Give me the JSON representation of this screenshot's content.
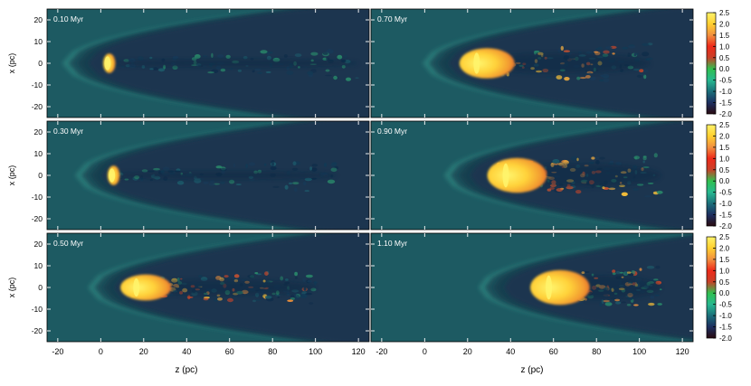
{
  "figure": {
    "xlabel": "z (pc)",
    "ylabel": "x (pc)",
    "x_ticks": [
      -20,
      0,
      20,
      40,
      60,
      80,
      100,
      120
    ],
    "y_ticks": [
      20,
      10,
      0,
      -10,
      -20
    ],
    "colorbar_ticks": [
      "2.5",
      "2.0",
      "1.5",
      "1.0",
      "0.5",
      "0.0",
      "-0.5",
      "-1.0",
      "-1.5",
      "-2.0"
    ],
    "colorbar_colors": [
      "#2a0a10",
      "#1d2f60",
      "#1c6e7a",
      "#27b890",
      "#30c050",
      "#c84028",
      "#ee2a1a",
      "#f29040",
      "#ffd030",
      "#fff36a"
    ],
    "background_color": "#1d5a62"
  },
  "chart_data": [
    {
      "type": "heatmap",
      "time_label": "0.10 Myr",
      "panel_row": 0,
      "panel_col": 0,
      "xlim": [
        -25,
        125
      ],
      "ylim": [
        -25,
        25
      ],
      "colorbar_range": [
        -2.0,
        2.5
      ],
      "clump_head_z": 2,
      "tail_end_z": 120,
      "bow_shock_apex_z": -18,
      "bow_opening": 0.16,
      "tail_width": 2
    },
    {
      "type": "heatmap",
      "time_label": "0.70 Myr",
      "panel_row": 0,
      "panel_col": 1,
      "xlim": [
        -25,
        125
      ],
      "ylim": [
        -25,
        25
      ],
      "colorbar_range": [
        -2.0,
        2.5
      ],
      "clump_head_z": 17,
      "tail_end_z": 105,
      "bow_shock_apex_z": -1,
      "bow_opening": 0.16,
      "tail_width": 5
    },
    {
      "type": "heatmap",
      "time_label": "0.30 Myr",
      "panel_row": 1,
      "panel_col": 0,
      "xlim": [
        -25,
        125
      ],
      "ylim": [
        -25,
        25
      ],
      "colorbar_range": [
        -2.0,
        2.5
      ],
      "clump_head_z": 4,
      "tail_end_z": 110,
      "bow_shock_apex_z": -12,
      "bow_opening": 0.16,
      "tail_width": 2
    },
    {
      "type": "heatmap",
      "time_label": "0.90 Myr",
      "panel_row": 1,
      "panel_col": 1,
      "xlim": [
        -25,
        125
      ],
      "ylim": [
        -25,
        25
      ],
      "colorbar_range": [
        -2.0,
        2.5
      ],
      "clump_head_z": 30,
      "tail_end_z": 110,
      "bow_shock_apex_z": 9,
      "bow_opening": 0.16,
      "tail_width": 6
    },
    {
      "type": "heatmap",
      "time_label": "0.50 Myr",
      "panel_row": 2,
      "panel_col": 0,
      "xlim": [
        -25,
        125
      ],
      "ylim": [
        -25,
        25
      ],
      "colorbar_range": [
        -2.0,
        2.5
      ],
      "clump_head_z": 10,
      "tail_end_z": 100,
      "bow_shock_apex_z": -6,
      "bow_opening": 0.16,
      "tail_width": 4
    },
    {
      "type": "heatmap",
      "time_label": "1.10 Myr",
      "panel_row": 2,
      "panel_col": 1,
      "xlim": [
        -25,
        125
      ],
      "ylim": [
        -25,
        25
      ],
      "colorbar_range": [
        -2.0,
        2.5
      ],
      "clump_head_z": 50,
      "tail_end_z": 110,
      "bow_shock_apex_z": 25,
      "bow_opening": 0.16,
      "tail_width": 6
    }
  ]
}
